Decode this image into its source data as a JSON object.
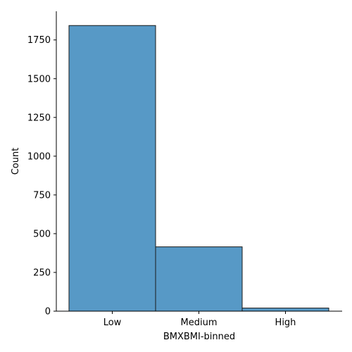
{
  "chart_data": {
    "type": "bar",
    "categories": [
      "Low",
      "Medium",
      "High"
    ],
    "values": [
      1843,
      415,
      20
    ],
    "xlabel": "BMXBMI-binned",
    "ylabel": "Count",
    "ylim": [
      0,
      1935
    ],
    "yticks": [
      0,
      250,
      500,
      750,
      1000,
      1250,
      1500,
      1750
    ],
    "grid": false,
    "legend": "none",
    "bar_color": "#5799c6",
    "edge_color": "#1a1a1a"
  }
}
